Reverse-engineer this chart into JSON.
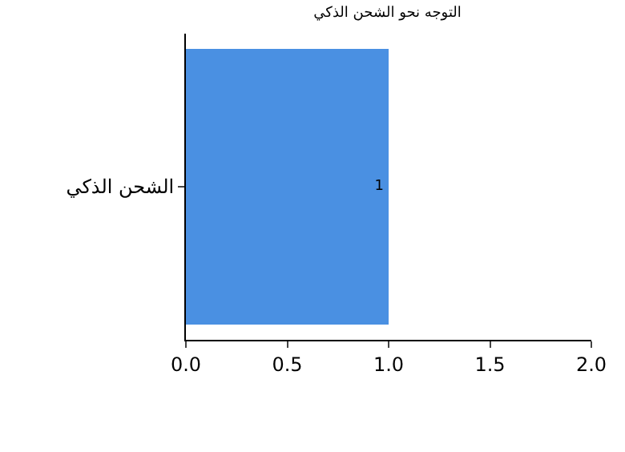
{
  "chart_data": {
    "type": "bar",
    "orientation": "horizontal",
    "title": "التوجه نحو الشحن الذكي",
    "categories": [
      "الشحن الذكي"
    ],
    "values": [
      1
    ],
    "color": "#4a90e2",
    "xlim": [
      0,
      2
    ],
    "xticks": [
      {
        "value": 0,
        "label": "0.0"
      },
      0.5,
      {
        "value": 1,
        "label": "1.0"
      },
      1.5,
      {
        "value": 2,
        "label": "2.0"
      }
    ],
    "grid": false,
    "data_labels": true
  }
}
